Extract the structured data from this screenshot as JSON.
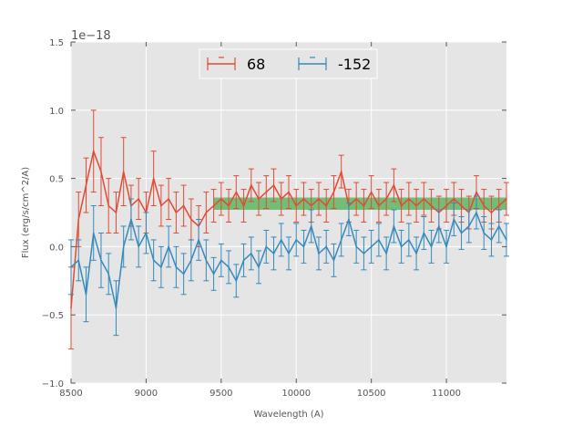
{
  "chart_data": {
    "type": "line",
    "title": "",
    "xlabel": "Wavelength (A)",
    "ylabel": "Flux (erg/s/cm^2/A)",
    "y_offset_label": "1e−18",
    "xlim": [
      8500,
      11400
    ],
    "ylim": [
      -1.0,
      1.5
    ],
    "xticks": [
      8500,
      9000,
      9500,
      10000,
      10500,
      11000
    ],
    "xtick_labels": [
      "8500",
      "9000",
      "9500",
      "10000",
      "10500",
      "11000"
    ],
    "yticks": [
      -1.0,
      -0.5,
      0.0,
      0.5,
      1.0,
      1.5
    ],
    "ytick_labels": [
      "−1.0",
      "−0.5",
      "0.0",
      "0.5",
      "1.0",
      "1.5"
    ],
    "grid": true,
    "legend_position": "top-center",
    "colors": {
      "s68": "#E24A33",
      "sm152": "#348ABD",
      "band": "#4CAF50",
      "bg": "#E5E5E5"
    },
    "band": {
      "x_range": [
        9450,
        11400
      ],
      "y_range": [
        0.27,
        0.36
      ]
    },
    "series": [
      {
        "name": "68",
        "color": "#E24A33",
        "x": [
          8500,
          8550,
          8600,
          8650,
          8700,
          8750,
          8800,
          8850,
          8900,
          8950,
          9000,
          9050,
          9100,
          9150,
          9200,
          9250,
          9300,
          9350,
          9400,
          9450,
          9500,
          9550,
          9600,
          9650,
          9700,
          9750,
          9800,
          9850,
          9900,
          9950,
          10000,
          10050,
          10100,
          10150,
          10200,
          10250,
          10300,
          10350,
          10400,
          10450,
          10500,
          10550,
          10600,
          10650,
          10700,
          10750,
          10800,
          10850,
          10900,
          10950,
          11000,
          11050,
          11100,
          11150,
          11200,
          11250,
          11300,
          11350,
          11400
        ],
        "values": [
          -0.45,
          0.2,
          0.45,
          0.7,
          0.55,
          0.3,
          0.25,
          0.55,
          0.3,
          0.35,
          0.25,
          0.5,
          0.3,
          0.35,
          0.25,
          0.3,
          0.2,
          0.15,
          0.25,
          0.3,
          0.35,
          0.3,
          0.4,
          0.3,
          0.45,
          0.35,
          0.4,
          0.45,
          0.35,
          0.4,
          0.3,
          0.35,
          0.3,
          0.35,
          0.3,
          0.4,
          0.55,
          0.3,
          0.35,
          0.3,
          0.4,
          0.3,
          0.35,
          0.45,
          0.3,
          0.35,
          0.3,
          0.35,
          0.3,
          0.25,
          0.3,
          0.35,
          0.3,
          0.25,
          0.4,
          0.3,
          0.25,
          0.3,
          0.35
        ],
        "errors": [
          0.3,
          0.2,
          0.2,
          0.3,
          0.25,
          0.2,
          0.15,
          0.25,
          0.15,
          0.15,
          0.15,
          0.2,
          0.15,
          0.15,
          0.15,
          0.15,
          0.15,
          0.15,
          0.15,
          0.12,
          0.12,
          0.12,
          0.12,
          0.12,
          0.12,
          0.12,
          0.12,
          0.12,
          0.12,
          0.12,
          0.12,
          0.12,
          0.12,
          0.12,
          0.12,
          0.12,
          0.12,
          0.12,
          0.12,
          0.12,
          0.12,
          0.12,
          0.12,
          0.12,
          0.12,
          0.12,
          0.12,
          0.12,
          0.12,
          0.12,
          0.12,
          0.12,
          0.12,
          0.12,
          0.12,
          0.12,
          0.12,
          0.12,
          0.12
        ]
      },
      {
        "name": "-152",
        "color": "#348ABD",
        "x": [
          8500,
          8550,
          8600,
          8650,
          8700,
          8750,
          8800,
          8850,
          8900,
          8950,
          9000,
          9050,
          9100,
          9150,
          9200,
          9250,
          9300,
          9350,
          9400,
          9450,
          9500,
          9550,
          9600,
          9650,
          9700,
          9750,
          9800,
          9850,
          9900,
          9950,
          10000,
          10050,
          10100,
          10150,
          10200,
          10250,
          10300,
          10350,
          10400,
          10450,
          10500,
          10550,
          10600,
          10650,
          10700,
          10750,
          10800,
          10850,
          10900,
          10950,
          11000,
          11050,
          11100,
          11150,
          11200,
          11250,
          11300,
          11350,
          11400
        ],
        "values": [
          -0.15,
          -0.1,
          -0.35,
          0.1,
          -0.1,
          -0.2,
          -0.45,
          0.0,
          0.2,
          0.0,
          0.1,
          -0.1,
          -0.15,
          0.0,
          -0.15,
          -0.2,
          -0.1,
          0.05,
          -0.1,
          -0.2,
          -0.1,
          -0.15,
          -0.25,
          -0.1,
          -0.05,
          -0.15,
          0.0,
          -0.05,
          0.05,
          -0.05,
          0.05,
          0.0,
          0.15,
          -0.05,
          0.0,
          -0.1,
          0.05,
          0.2,
          0.0,
          -0.05,
          0.0,
          0.05,
          -0.05,
          0.15,
          0.0,
          0.05,
          -0.05,
          0.1,
          0.0,
          0.15,
          0.0,
          0.2,
          0.1,
          0.15,
          0.25,
          0.1,
          0.05,
          0.15,
          0.05
        ],
        "errors": [
          0.2,
          0.15,
          0.2,
          0.2,
          0.2,
          0.15,
          0.2,
          0.15,
          0.15,
          0.15,
          0.15,
          0.15,
          0.15,
          0.15,
          0.15,
          0.15,
          0.15,
          0.15,
          0.15,
          0.12,
          0.12,
          0.12,
          0.12,
          0.12,
          0.12,
          0.12,
          0.12,
          0.12,
          0.12,
          0.12,
          0.12,
          0.12,
          0.12,
          0.12,
          0.12,
          0.12,
          0.12,
          0.12,
          0.12,
          0.12,
          0.12,
          0.12,
          0.12,
          0.12,
          0.12,
          0.12,
          0.12,
          0.12,
          0.12,
          0.12,
          0.12,
          0.12,
          0.12,
          0.12,
          0.12,
          0.12,
          0.12,
          0.12,
          0.12
        ]
      }
    ]
  }
}
